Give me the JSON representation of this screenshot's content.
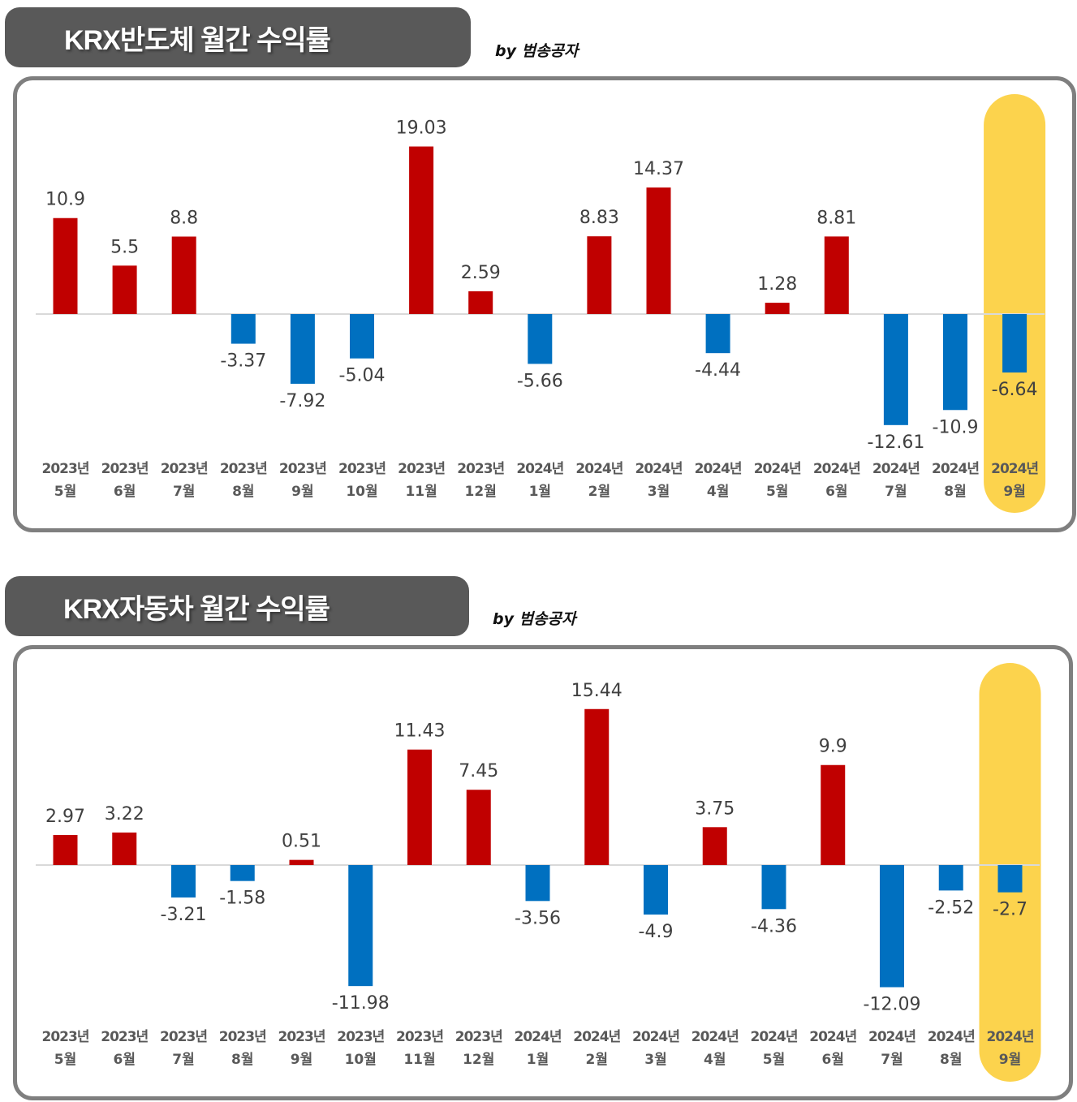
{
  "byline": "by 범송공자",
  "colors": {
    "positive": "#C00000",
    "negative": "#0070C0",
    "highlight": "#FCD34D",
    "frame": "#7F7F7F",
    "title_bg": "#595959"
  },
  "chart_data": [
    {
      "type": "bar",
      "title": "KRX반도체 월간 수익률",
      "categories": [
        {
          "year": "2023년",
          "month": "5월"
        },
        {
          "year": "2023년",
          "month": "6월"
        },
        {
          "year": "2023년",
          "month": "7월"
        },
        {
          "year": "2023년",
          "month": "8월"
        },
        {
          "year": "2023년",
          "month": "9월"
        },
        {
          "year": "2023년",
          "month": "10월"
        },
        {
          "year": "2023년",
          "month": "11월"
        },
        {
          "year": "2023년",
          "month": "12월"
        },
        {
          "year": "2024년",
          "month": "1월"
        },
        {
          "year": "2024년",
          "month": "2월"
        },
        {
          "year": "2024년",
          "month": "3월"
        },
        {
          "year": "2024년",
          "month": "4월"
        },
        {
          "year": "2024년",
          "month": "5월"
        },
        {
          "year": "2024년",
          "month": "6월"
        },
        {
          "year": "2024년",
          "month": "7월"
        },
        {
          "year": "2024년",
          "month": "8월"
        },
        {
          "year": "2024년",
          "month": "9월"
        }
      ],
      "values": [
        10.9,
        5.5,
        8.8,
        -3.37,
        -7.92,
        -5.04,
        19.03,
        2.59,
        -5.66,
        8.83,
        14.37,
        -4.44,
        1.28,
        8.81,
        -12.61,
        -10.9,
        -6.64
      ],
      "value_labels": [
        "10.9",
        "5.5",
        "8.8",
        "-3.37",
        "-7.92",
        "-5.04",
        "19.03",
        "2.59",
        "-5.66",
        "8.83",
        "14.37",
        "-4.44",
        "1.28",
        "8.81",
        "-12.61",
        "-10.9",
        "-6.64"
      ],
      "highlight_index": 16,
      "ylim": [
        -14.5,
        20.5
      ],
      "grid": false,
      "legend": "none"
    },
    {
      "type": "bar",
      "title": "KRX자동차 월간 수익률",
      "categories": [
        {
          "year": "2023년",
          "month": "5월"
        },
        {
          "year": "2023년",
          "month": "6월"
        },
        {
          "year": "2023년",
          "month": "7월"
        },
        {
          "year": "2023년",
          "month": "8월"
        },
        {
          "year": "2023년",
          "month": "9월"
        },
        {
          "year": "2023년",
          "month": "10월"
        },
        {
          "year": "2023년",
          "month": "11월"
        },
        {
          "year": "2023년",
          "month": "12월"
        },
        {
          "year": "2024년",
          "month": "1월"
        },
        {
          "year": "2024년",
          "month": "2월"
        },
        {
          "year": "2024년",
          "month": "3월"
        },
        {
          "year": "2024년",
          "month": "4월"
        },
        {
          "year": "2024년",
          "month": "5월"
        },
        {
          "year": "2024년",
          "month": "6월"
        },
        {
          "year": "2024년",
          "month": "7월"
        },
        {
          "year": "2024년",
          "month": "8월"
        },
        {
          "year": "2024년",
          "month": "9월"
        }
      ],
      "values": [
        2.97,
        3.22,
        -3.21,
        -1.58,
        0.51,
        -11.98,
        11.43,
        7.45,
        -3.56,
        15.44,
        -4.9,
        3.75,
        -4.36,
        9.9,
        -12.09,
        -2.52,
        -2.7
      ],
      "value_labels": [
        "2.97",
        "3.22",
        "-3.21",
        "-1.58",
        "0.51",
        "-11.98",
        "11.43",
        "7.45",
        "-3.56",
        "15.44",
        "-4.9",
        "3.75",
        "-4.36",
        "9.9",
        "-12.09",
        "-2.52",
        "-2.7"
      ],
      "highlight_index": 16,
      "ylim": [
        -14,
        17
      ],
      "grid": false,
      "legend": "none"
    }
  ]
}
